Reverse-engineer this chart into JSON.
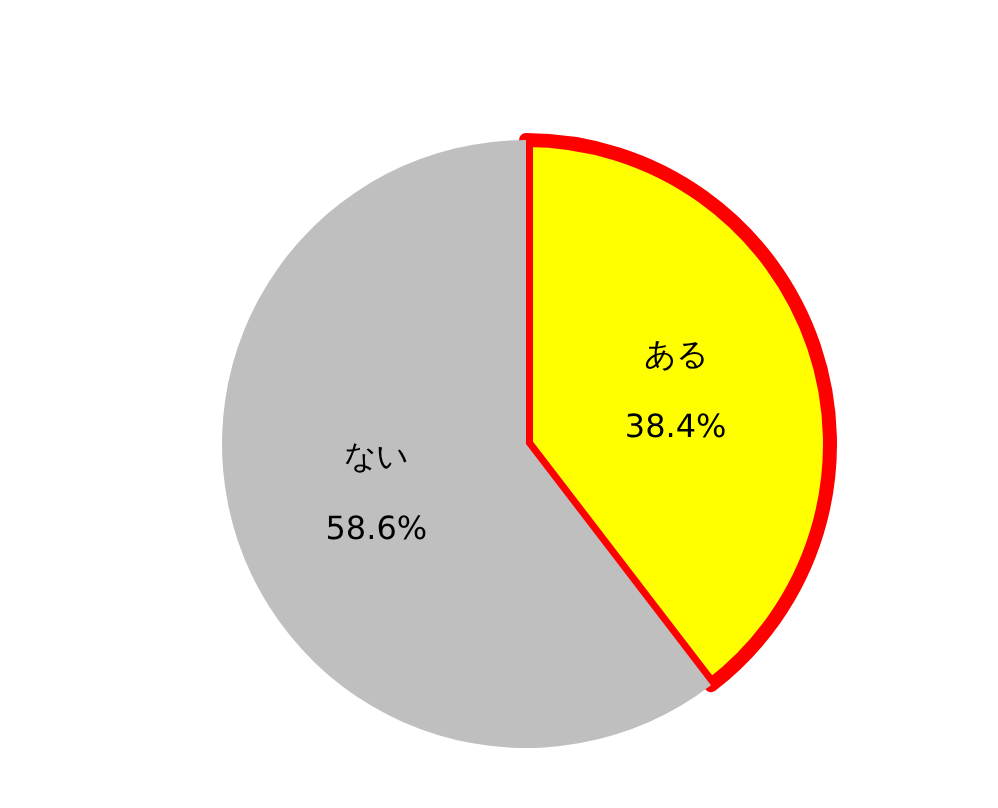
{
  "chart_data": {
    "type": "pie",
    "categories": [
      "ある",
      "ない"
    ],
    "values": [
      38.4,
      58.6
    ],
    "colors": [
      "#ffff00",
      "#bfbfbf"
    ],
    "value_labels": [
      "38.4%",
      "58.6%"
    ]
  }
}
